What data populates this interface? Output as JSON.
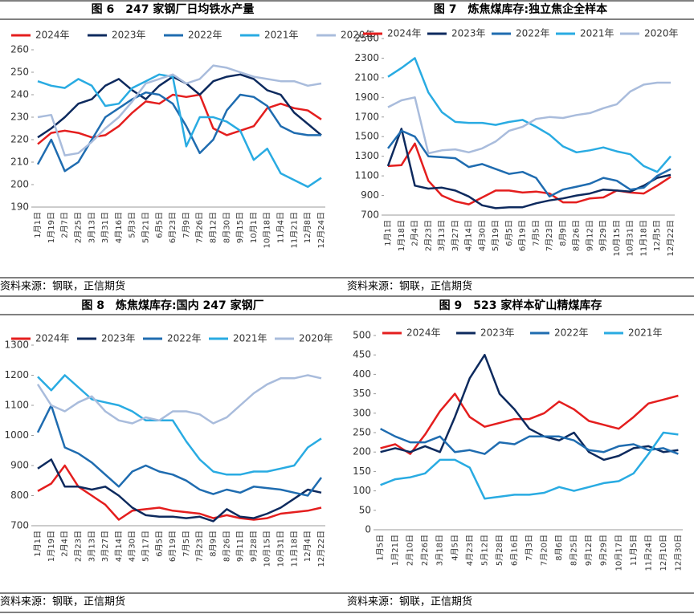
{
  "chart_data": [
    {
      "type": "line",
      "title": "图 6　247 家钢厂日均铁水产量",
      "source": "资料来源：钢联，正信期货",
      "categories": [
        "1月1日",
        "1月19日",
        "2月7日",
        "2月25日",
        "3月13日",
        "3月31日",
        "4月16日",
        "5月3日",
        "5月21日",
        "6月5日",
        "6月23日",
        "7月9日",
        "7月26日",
        "8月12日",
        "8月30日",
        "9月15日",
        "10月1日",
        "10月18日",
        "11月4日",
        "11月21日",
        "12月8日",
        "12月24日"
      ],
      "series": [
        {
          "name": "2024年",
          "color": "#e41e1e",
          "values": [
            218,
            223,
            224,
            223,
            221,
            222,
            226,
            232,
            237,
            236,
            240,
            239,
            240,
            225,
            222,
            224,
            226,
            234,
            236,
            234,
            233,
            229
          ]
        },
        {
          "name": "2023年",
          "color": "#0d2a5e",
          "values": [
            221,
            225,
            230,
            236,
            238,
            244,
            247,
            242,
            238,
            244,
            248,
            245,
            240,
            246,
            248,
            249,
            247,
            242,
            240,
            232,
            227,
            222
          ]
        },
        {
          "name": "2022年",
          "color": "#1f6cb0",
          "values": [
            209,
            220,
            206,
            210,
            220,
            230,
            234,
            238,
            241,
            240,
            236,
            226,
            214,
            220,
            233,
            240,
            239,
            235,
            226,
            223,
            222,
            222
          ]
        },
        {
          "name": "2021年",
          "color": "#29abe2",
          "values": [
            246,
            244,
            243,
            247,
            244,
            235,
            236,
            243,
            246,
            249,
            248,
            217,
            230,
            230,
            228,
            224,
            211,
            216,
            205,
            202,
            199,
            203
          ]
        },
        {
          "name": "2020年",
          "color": "#a9bcdc",
          "values": [
            230,
            231,
            213,
            214,
            219,
            225,
            230,
            237,
            245,
            247,
            249,
            245,
            247,
            253,
            252,
            250,
            248,
            247,
            246,
            246,
            244,
            245
          ]
        }
      ],
      "ylim": [
        190,
        260
      ],
      "yticks": [
        190,
        200,
        210,
        220,
        230,
        240,
        250,
        260
      ]
    },
    {
      "type": "line",
      "title": "图 7　炼焦煤库存:独立焦企全样本",
      "source": "资料来源：钢联，正信期货",
      "categories": [
        "1月1日",
        "1月18日",
        "2月4日",
        "2月23日",
        "3月13日",
        "3月27日",
        "4月14日",
        "4月30日",
        "5月19日",
        "6月5日",
        "6月19日",
        "7月5日",
        "7月23日",
        "8月9日",
        "8月26日",
        "9月12日",
        "9月29日",
        "10月15日",
        "10月31日",
        "11月18日",
        "12月5日",
        "12月22日"
      ],
      "series": [
        {
          "name": "2024年",
          "color": "#e41e1e",
          "values": [
            1200,
            1210,
            1430,
            1050,
            900,
            840,
            810,
            880,
            950,
            950,
            930,
            940,
            920,
            830,
            830,
            870,
            880,
            950,
            930,
            920,
            1000,
            1090
          ]
        },
        {
          "name": "2023年",
          "color": "#0d2a5e",
          "values": [
            1200,
            1580,
            1000,
            970,
            980,
            950,
            890,
            800,
            770,
            780,
            780,
            820,
            850,
            870,
            900,
            920,
            960,
            950,
            940,
            1000,
            1080,
            1110
          ]
        },
        {
          "name": "2022年",
          "color": "#1f6cb0",
          "values": [
            1380,
            1560,
            1500,
            1300,
            1290,
            1280,
            1190,
            1220,
            1170,
            1120,
            1140,
            1080,
            890,
            960,
            990,
            1020,
            1080,
            1050,
            960,
            980,
            1100,
            1170
          ]
        },
        {
          "name": "2021年",
          "color": "#29abe2",
          "values": [
            2110,
            2200,
            2300,
            1950,
            1750,
            1650,
            1640,
            1640,
            1620,
            1650,
            1670,
            1600,
            1520,
            1400,
            1340,
            1360,
            1390,
            1350,
            1320,
            1200,
            1140,
            1300
          ]
        },
        {
          "name": "2020年",
          "color": "#a9bcdc",
          "values": [
            1800,
            1870,
            1900,
            1330,
            1360,
            1370,
            1340,
            1380,
            1450,
            1560,
            1600,
            1680,
            1700,
            1690,
            1720,
            1740,
            1790,
            1830,
            1960,
            2030,
            2050,
            2050
          ]
        }
      ],
      "ylim": [
        700,
        2500
      ],
      "yticks": [
        700,
        900,
        1100,
        1300,
        1500,
        1700,
        1900,
        2100,
        2300,
        2500
      ]
    },
    {
      "type": "line",
      "title": "图 8　炼焦煤库存:国内 247 家钢厂",
      "source": "资料来源：钢联，正信期货",
      "categories": [
        "1月1日",
        "1月19日",
        "2月4日",
        "2月23日",
        "3月13日",
        "3月27日",
        "4月14日",
        "4月30日",
        "5月17日",
        "6月5日",
        "6月19日",
        "7月5日",
        "7月23日",
        "8月9日",
        "8月26日",
        "9月11日",
        "9月28日",
        "10月15日",
        "10月31日",
        "11月18日",
        "12月4日",
        "12月22日"
      ],
      "series": [
        {
          "name": "2024年",
          "color": "#e41e1e",
          "values": [
            815,
            840,
            900,
            830,
            800,
            770,
            720,
            750,
            755,
            760,
            750,
            745,
            740,
            725,
            735,
            725,
            720,
            725,
            740,
            745,
            750,
            760
          ]
        },
        {
          "name": "2023年",
          "color": "#0d2a5e",
          "values": [
            890,
            920,
            830,
            830,
            820,
            830,
            800,
            760,
            735,
            730,
            730,
            725,
            730,
            715,
            755,
            730,
            725,
            740,
            760,
            790,
            820,
            810
          ]
        },
        {
          "name": "2022年",
          "color": "#1f6cb0",
          "values": [
            1010,
            1100,
            960,
            940,
            910,
            870,
            830,
            880,
            900,
            880,
            870,
            850,
            820,
            805,
            820,
            810,
            830,
            825,
            820,
            810,
            800,
            860
          ]
        },
        {
          "name": "2021年",
          "color": "#29abe2",
          "values": [
            1195,
            1150,
            1200,
            1160,
            1120,
            1110,
            1100,
            1080,
            1050,
            1050,
            1050,
            980,
            920,
            880,
            870,
            870,
            880,
            880,
            890,
            900,
            960,
            990
          ]
        },
        {
          "name": "2020年",
          "color": "#a9bcdc",
          "values": [
            1170,
            1100,
            1080,
            1110,
            1130,
            1080,
            1050,
            1040,
            1060,
            1050,
            1080,
            1080,
            1070,
            1040,
            1060,
            1100,
            1140,
            1170,
            1190,
            1190,
            1200,
            1190
          ]
        }
      ],
      "ylim": [
        700,
        1300
      ],
      "yticks": [
        700,
        800,
        900,
        1000,
        1100,
        1200,
        1300
      ]
    },
    {
      "type": "line",
      "title": "图 9　523 家样本矿山精煤库存",
      "source": "资料来源：钢联，正信期货",
      "categories": [
        "1月5日",
        "1月21日",
        "2月10日",
        "2月26日",
        "3月18日",
        "4月5日",
        "4月23日",
        "5月12日",
        "5月28日",
        "6月16日",
        "7月3日",
        "7月20日",
        "8月6日",
        "8月25日",
        "9月12日",
        "9月29日",
        "10月17日",
        "11月5日",
        "11月24日",
        "12月10日",
        "12月30日"
      ],
      "series": [
        {
          "name": "2024年",
          "color": "#e41e1e",
          "values": [
            210,
            220,
            195,
            245,
            305,
            350,
            290,
            265,
            275,
            285,
            285,
            300,
            330,
            310,
            280,
            270,
            260,
            290,
            325,
            335,
            345
          ]
        },
        {
          "name": "2023年",
          "color": "#0d2a5e",
          "values": [
            200,
            210,
            200,
            215,
            200,
            290,
            390,
            450,
            350,
            310,
            260,
            240,
            230,
            250,
            200,
            180,
            190,
            210,
            215,
            200,
            205
          ]
        },
        {
          "name": "2022年",
          "color": "#1f6cb0",
          "values": [
            260,
            240,
            225,
            225,
            240,
            200,
            205,
            195,
            225,
            220,
            240,
            240,
            240,
            230,
            205,
            200,
            215,
            220,
            205,
            210,
            195
          ]
        },
        {
          "name": "2021年",
          "color": "#29abe2",
          "values": [
            115,
            130,
            135,
            145,
            180,
            180,
            160,
            80,
            85,
            90,
            90,
            95,
            110,
            100,
            110,
            120,
            125,
            145,
            195,
            250,
            245
          ]
        }
      ],
      "ylim": [
        0,
        500
      ],
      "yticks": [
        0,
        50,
        100,
        150,
        200,
        250,
        300,
        350,
        400,
        450,
        500
      ]
    }
  ]
}
